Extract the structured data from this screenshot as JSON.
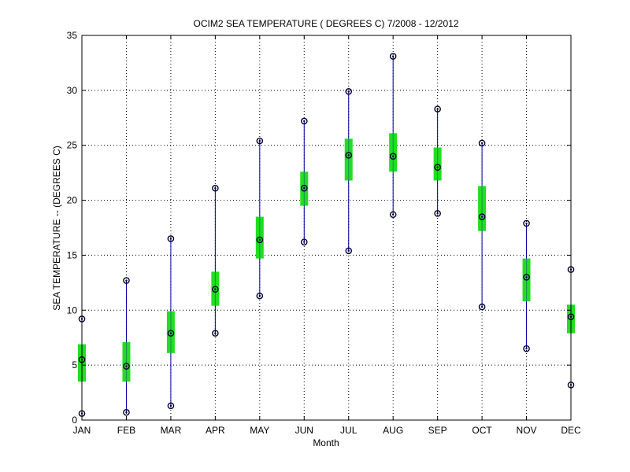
{
  "chart_data": {
    "type": "box",
    "title": "OCIM2  SEA TEMPERATURE ( DEGREES C) 7/2008 - 12/2012",
    "xlabel": "Month",
    "ylabel": "SEA TEMPERATURE -- (DEGREES C)",
    "ylim": [
      0,
      35
    ],
    "yticks": [
      0,
      5,
      10,
      15,
      20,
      25,
      30,
      35
    ],
    "grid": true,
    "categories": [
      "JAN",
      "FEB",
      "MAR",
      "APR",
      "MAY",
      "JUN",
      "JUL",
      "AUG",
      "SEP",
      "OCT",
      "NOV",
      "DEC"
    ],
    "min": [
      0.6,
      0.7,
      1.3,
      7.9,
      11.3,
      16.2,
      15.4,
      18.7,
      18.8,
      10.3,
      6.5,
      3.2
    ],
    "q1": [
      3.5,
      3.5,
      6.1,
      10.4,
      14.7,
      19.5,
      21.8,
      22.6,
      21.8,
      17.2,
      10.8,
      7.9
    ],
    "median": [
      5.5,
      4.9,
      7.9,
      11.9,
      16.4,
      21.1,
      24.1,
      24.0,
      23.0,
      18.5,
      13.0,
      9.4
    ],
    "q3": [
      6.9,
      7.1,
      9.9,
      13.5,
      18.5,
      22.6,
      25.6,
      26.1,
      24.8,
      21.3,
      14.7,
      10.5
    ],
    "max": [
      9.2,
      12.7,
      16.5,
      21.1,
      25.4,
      27.2,
      29.9,
      33.1,
      28.3,
      25.2,
      17.9,
      13.7
    ],
    "colors": {
      "whisker": "#0000a0",
      "box": "#22dd22",
      "marker": "#000030",
      "grid": "#000000"
    }
  }
}
